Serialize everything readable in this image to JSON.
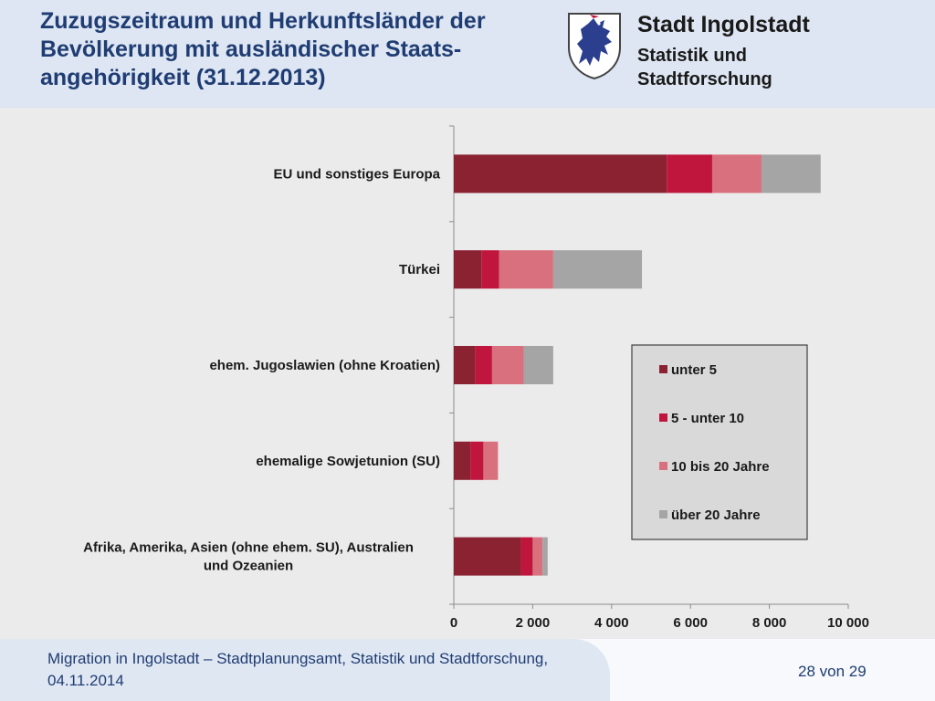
{
  "header": {
    "title": "Zuzugszeitraum und Herkunftsländer der Bevölkerung mit ausländischer Staats-angehörigkeit (31.12.2013)",
    "org_name": "Stadt Ingolstadt",
    "org_sub": "Statistik und Stadtforschung"
  },
  "footer": {
    "text": "Migration in Ingolstadt – Stadtplanungsamt, Statistik und Stadtforschung, 04.11.2014",
    "page": "28 von 29"
  },
  "colors": {
    "header_bg": "#dde6f2",
    "title": "#1f3c73",
    "crest_blue": "#2c3f8f"
  },
  "crest_icon": "panther-crest-icon",
  "chart_data": {
    "type": "bar",
    "orientation": "horizontal",
    "stacked": true,
    "categories": [
      "EU und sonstiges Europa",
      "Türkei",
      "ehem. Jugoslawien (ohne Kroatien)",
      "ehemalige Sowjetunion (SU)",
      "Afrika, Amerika, Asien (ohne ehem. SU), Australien und Ozeanien"
    ],
    "series": [
      {
        "name": "unter 5",
        "color": "#8b2232",
        "values": [
          5400,
          700,
          550,
          420,
          1700
        ]
      },
      {
        "name": "5 - unter 10",
        "color": "#c0163e",
        "values": [
          1150,
          450,
          420,
          330,
          300
        ]
      },
      {
        "name": "10 bis 20 Jahre",
        "color": "#d9707d",
        "values": [
          1250,
          1370,
          800,
          370,
          250
        ]
      },
      {
        "name": "über 20 Jahre",
        "color": "#a5a5a5",
        "values": [
          1500,
          2250,
          750,
          0,
          130
        ]
      }
    ],
    "xlim": [
      0,
      10000
    ],
    "xticks": [
      0,
      2000,
      4000,
      6000,
      8000,
      10000
    ],
    "xtick_labels": [
      "0",
      "2 000",
      "4 000",
      "6 000",
      "8 000",
      "10 000"
    ],
    "legend_position": "right",
    "grid": false
  }
}
